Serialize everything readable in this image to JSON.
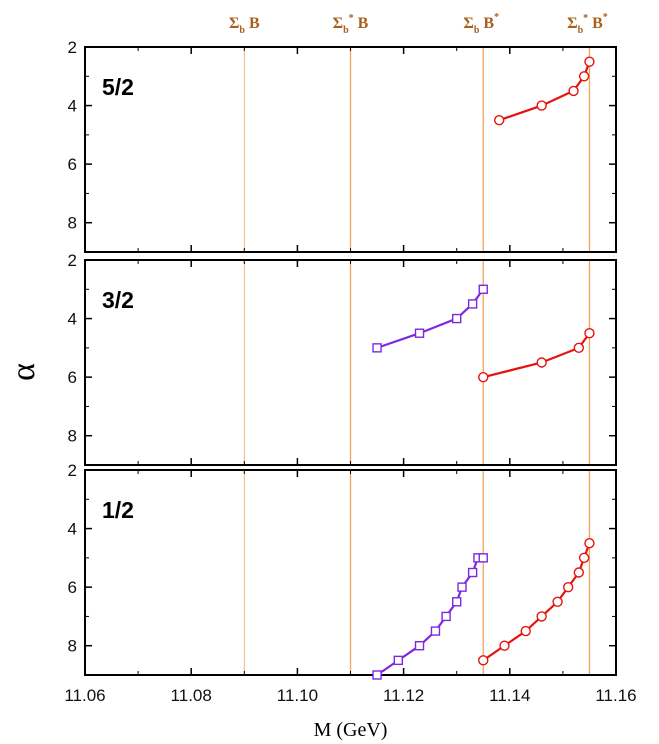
{
  "chart_data": {
    "type": "line",
    "xlabel": "M (GeV)",
    "ylabel": "α",
    "xlim": [
      11.06,
      11.16
    ],
    "ylim": [
      2,
      9
    ],
    "y_inverted": true,
    "x_ticks": [
      "11.06",
      "11.08",
      "11.10",
      "11.12",
      "11.14",
      "11.16"
    ],
    "y_ticks": [
      "2",
      "4",
      "6",
      "8"
    ],
    "grid": false,
    "colors": {
      "red": "#e8120c",
      "purple": "#7e28e0",
      "threshold": "#f0a55a",
      "threshold_label": "#a8601e"
    },
    "thresholds": [
      {
        "name": "ΣbB",
        "sym": "Σ",
        "sub": "b",
        "sup1": "",
        "mid": " B",
        "sup2": "",
        "x": 11.09
      },
      {
        "name": "Σb*B",
        "sym": "Σ",
        "sub": "b",
        "sup1": "*",
        "mid": " B",
        "sup2": "",
        "x": 11.11
      },
      {
        "name": "ΣbB*",
        "sym": "Σ",
        "sub": "b",
        "sup1": "",
        "mid": " B",
        "sup2": "*",
        "x": 11.135
      },
      {
        "name": "Σb*B*",
        "sym": "Σ",
        "sub": "b",
        "sup1": "*",
        "mid": " B",
        "sup2": "*",
        "x": 11.155
      }
    ],
    "panels": [
      {
        "label": "5/2",
        "series": [
          {
            "color": "red",
            "marker": "circle",
            "x": [
              11.138,
              11.146,
              11.152,
              11.154,
              11.155
            ],
            "y": [
              4.5,
              4.0,
              3.5,
              3.0,
              2.5
            ]
          }
        ]
      },
      {
        "label": "3/2",
        "series": [
          {
            "color": "purple",
            "marker": "square",
            "x": [
              11.115,
              11.123,
              11.13,
              11.133,
              11.135
            ],
            "y": [
              5.0,
              4.5,
              4.0,
              3.5,
              3.0
            ]
          },
          {
            "color": "red",
            "marker": "circle",
            "x": [
              11.135,
              11.146,
              11.153,
              11.155
            ],
            "y": [
              6.0,
              5.5,
              5.0,
              4.5
            ]
          }
        ]
      },
      {
        "label": "1/2",
        "series": [
          {
            "color": "purple",
            "marker": "square",
            "x": [
              11.115,
              11.119,
              11.123,
              11.126,
              11.128,
              11.13,
              11.131,
              11.133,
              11.134,
              11.135
            ],
            "y": [
              9.0,
              8.5,
              8.0,
              7.5,
              7.0,
              6.5,
              6.0,
              5.5,
              5.0,
              5.0
            ]
          },
          {
            "color": "red",
            "marker": "circle",
            "x": [
              11.135,
              11.139,
              11.143,
              11.146,
              11.149,
              11.151,
              11.153,
              11.154,
              11.155
            ],
            "y": [
              8.5,
              8.0,
              7.5,
              7.0,
              6.5,
              6.0,
              5.5,
              5.0,
              4.5
            ]
          }
        ]
      }
    ]
  }
}
